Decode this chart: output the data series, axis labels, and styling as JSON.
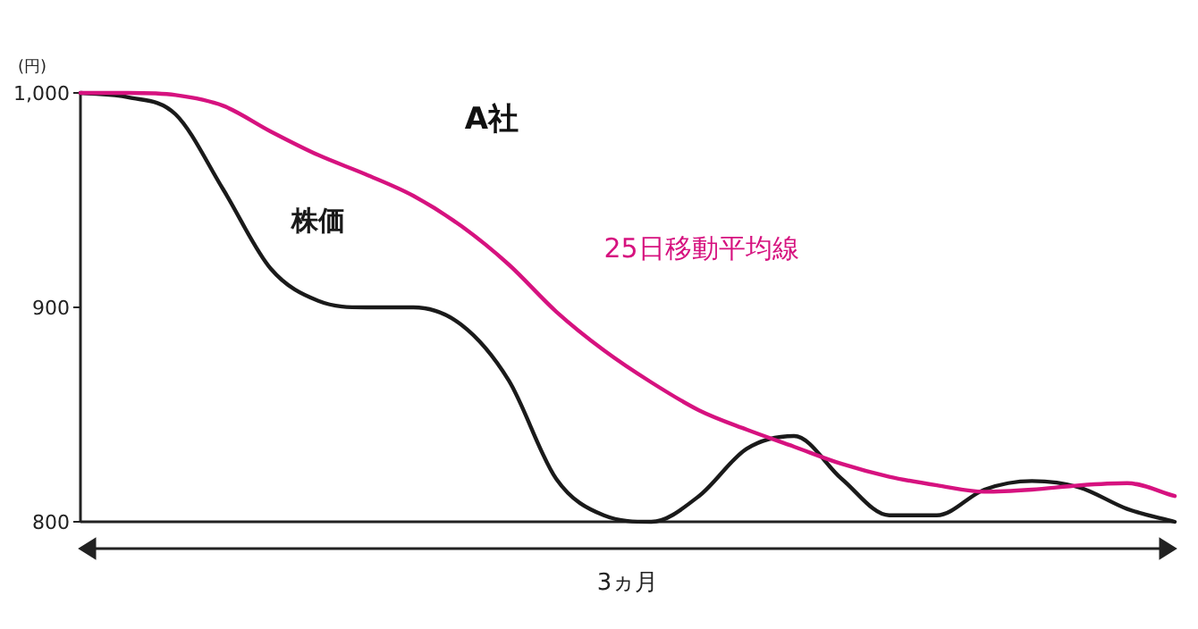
{
  "chart_data": {
    "type": "line",
    "title": "A社",
    "ylabel": "(円)",
    "xlabel": "3ヵ月",
    "categories": [
      null,
      null,
      null,
      null,
      null,
      null,
      null,
      null,
      null,
      null,
      null,
      null,
      null,
      null,
      null,
      null,
      null,
      null,
      null,
      null,
      null,
      null,
      null,
      null
    ],
    "series": [
      {
        "name": "株価",
        "color": "#1a1a1a",
        "values": [
          1000,
          998,
          990,
          955,
          918,
          903,
          900,
          900,
          892,
          866,
          820,
          803,
          800,
          812,
          834,
          840,
          820,
          803,
          803,
          815,
          819,
          816,
          806,
          800
        ]
      },
      {
        "name": "25日移動平均線",
        "color": "#d6127f",
        "values": [
          1000,
          1000,
          999,
          994,
          982,
          971,
          962,
          952,
          938,
          920,
          898,
          880,
          865,
          852,
          843,
          835,
          827,
          821,
          817,
          814,
          815,
          817,
          818,
          812
        ]
      }
    ],
    "ylim": [
      800,
      1000
    ],
    "yticks": [
      800,
      900,
      {
        "value": 1000,
        "label": "1,000"
      }
    ],
    "grid": false,
    "legend": false,
    "marker": "none",
    "line_style": "solid"
  }
}
